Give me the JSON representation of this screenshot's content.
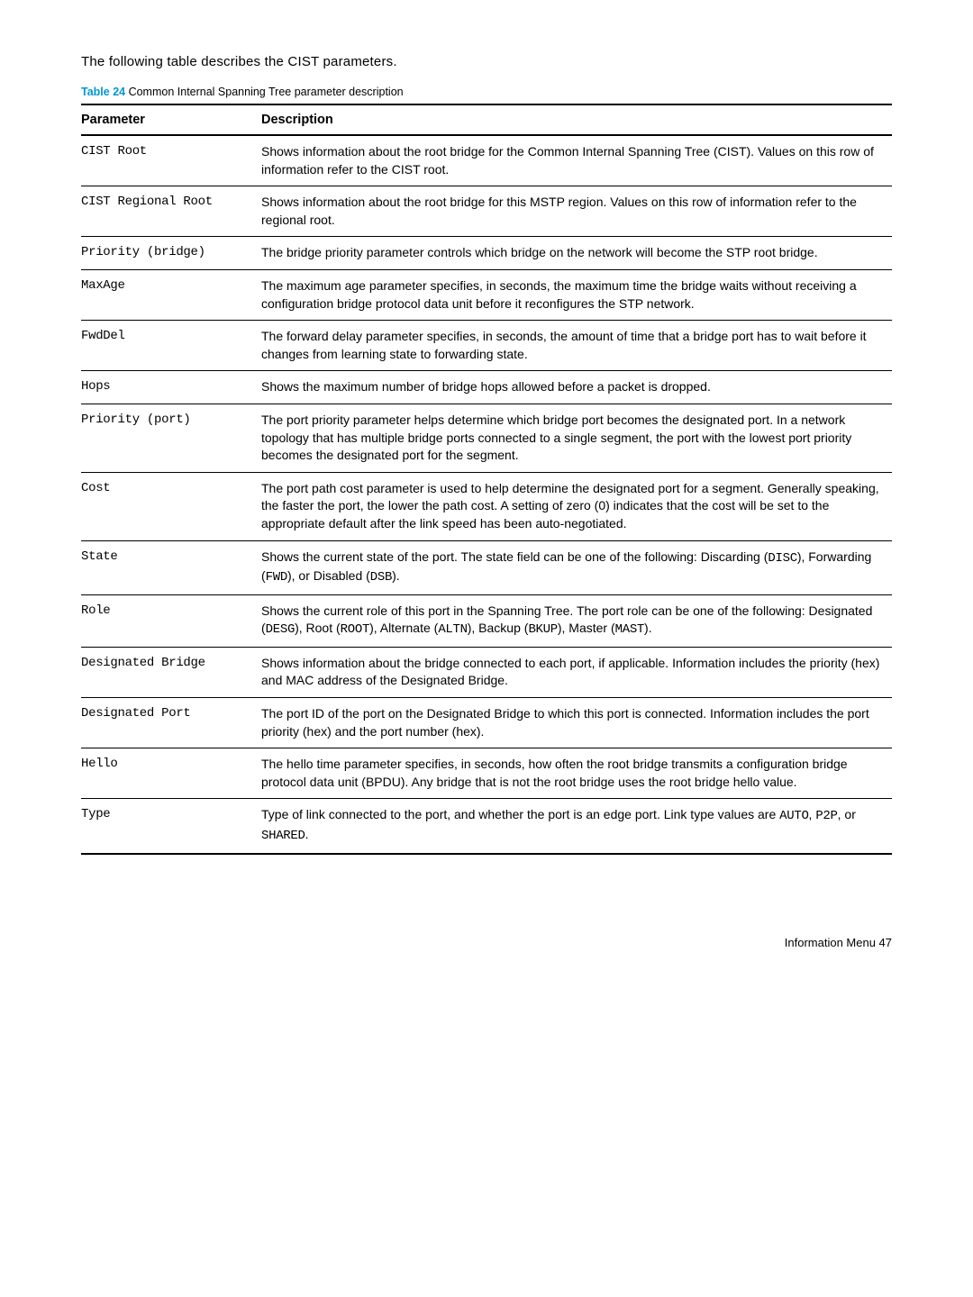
{
  "intro": "The following table describes the CIST parameters.",
  "caption": {
    "label": "Table 24",
    "rest": "  Common Internal Spanning Tree parameter description"
  },
  "headers": {
    "param": "Parameter",
    "desc": "Description"
  },
  "rows": [
    {
      "param": "CIST Root",
      "desc": [
        {
          "t": "Shows information about the root bridge for the Common Internal Spanning Tree (CIST). Values on this row of information refer to the CIST root."
        }
      ]
    },
    {
      "param": "CIST Regional Root",
      "desc": [
        {
          "t": "Shows information about the root bridge for this MSTP region. Values on this row of information refer to the regional root."
        }
      ]
    },
    {
      "param": "Priority (bridge)",
      "desc": [
        {
          "t": "The bridge priority parameter controls which bridge on the network will become the STP root bridge."
        }
      ]
    },
    {
      "param": "MaxAge",
      "desc": [
        {
          "t": "The maximum age parameter specifies, in seconds, the maximum time the bridge waits without receiving a configuration bridge protocol data unit before it reconfigures the STP network."
        }
      ]
    },
    {
      "param": "FwdDel",
      "desc": [
        {
          "t": "The forward delay parameter specifies, in seconds, the amount of time that a bridge port has to wait before it changes from learning state to forwarding state."
        }
      ]
    },
    {
      "param": "Hops",
      "desc": [
        {
          "t": "Shows the maximum number of bridge hops allowed before a packet is dropped."
        }
      ]
    },
    {
      "param": "Priority (port)",
      "desc": [
        {
          "t": "The port priority parameter helps determine which bridge port becomes the designated port. In a network topology that has multiple bridge ports connected to a single segment, the port with the lowest port priority becomes the designated port for the segment."
        }
      ]
    },
    {
      "param": "Cost",
      "desc": [
        {
          "t": "The port path cost parameter is used to help determine the designated port for a segment. Generally speaking, the faster the port, the lower the path cost. A setting of zero (0) indicates that the cost will be set to the appropriate default after the link speed has been auto-negotiated."
        }
      ]
    },
    {
      "param": "State",
      "desc": [
        {
          "t": "Shows the current state of the port. The state field can be one of the following: Discarding ("
        },
        {
          "t": "DISC",
          "mono": true
        },
        {
          "t": "), Forwarding ("
        },
        {
          "t": "FWD",
          "mono": true
        },
        {
          "t": "), or Disabled ("
        },
        {
          "t": "DSB",
          "mono": true
        },
        {
          "t": ")."
        }
      ]
    },
    {
      "param": "Role",
      "desc": [
        {
          "t": "Shows the current role of this port in the Spanning Tree. The port role can be one of the following: Designated ("
        },
        {
          "t": "DESG",
          "mono": true
        },
        {
          "t": "), Root ("
        },
        {
          "t": "ROOT",
          "mono": true
        },
        {
          "t": "), Alternate ("
        },
        {
          "t": "ALTN",
          "mono": true
        },
        {
          "t": "), Backup ("
        },
        {
          "t": "BKUP",
          "mono": true
        },
        {
          "t": "), Master ("
        },
        {
          "t": "MAST",
          "mono": true
        },
        {
          "t": ")."
        }
      ]
    },
    {
      "param": "Designated Bridge",
      "desc": [
        {
          "t": "Shows information about the bridge connected to each port, if applicable. Information includes the priority (hex) and MAC address of the Designated Bridge."
        }
      ]
    },
    {
      "param": "Designated Port",
      "desc": [
        {
          "t": "The port ID of the port on the Designated Bridge to which this port is connected. Information includes the port priority (hex) and the port number (hex)."
        }
      ]
    },
    {
      "param": "Hello",
      "desc": [
        {
          "t": "The hello time parameter specifies, in seconds, how often the root bridge transmits a configuration bridge protocol data unit (BPDU). Any bridge that is not the root bridge uses the root bridge hello value."
        }
      ]
    },
    {
      "param": "Type",
      "desc": [
        {
          "t": "Type of link connected to the port, and whether the port is an edge port. Link type values are "
        },
        {
          "t": "AUTO",
          "mono": true
        },
        {
          "t": ", "
        },
        {
          "t": "P2P",
          "mono": true
        },
        {
          "t": ", or "
        },
        {
          "t": "SHARED",
          "mono": true
        },
        {
          "t": "."
        }
      ]
    }
  ],
  "footer": "Information Menu   47"
}
